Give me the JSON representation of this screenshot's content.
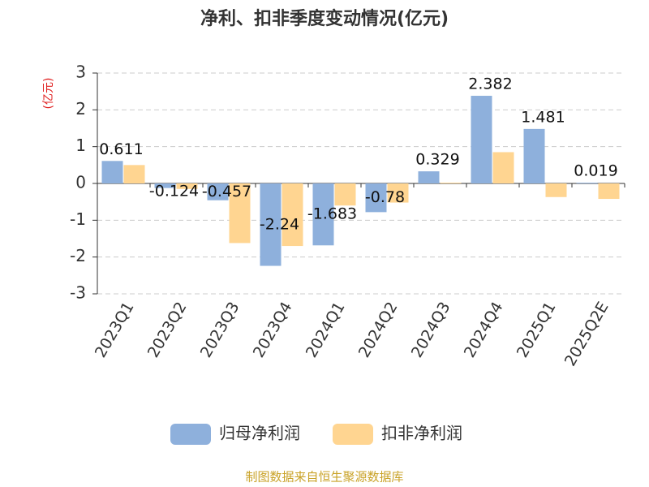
{
  "chart_data": {
    "type": "bar",
    "title": "净利、扣非季度变动情况(亿元)",
    "y_label": "(亿元)",
    "categories": [
      "2023Q1",
      "2023Q2",
      "2023Q3",
      "2023Q4",
      "2024Q1",
      "2024Q2",
      "2024Q3",
      "2024Q4",
      "2025Q1",
      "2025Q2E"
    ],
    "series": [
      {
        "name": "归母净利润",
        "color": "#8eb0dc",
        "values": [
          0.611,
          -0.124,
          -0.457,
          -2.24,
          -1.683,
          -0.78,
          0.329,
          2.382,
          1.481,
          0.019
        ],
        "show_labels": true
      },
      {
        "name": "扣非净利润",
        "color": "#ffd591",
        "values": [
          0.5,
          -0.15,
          -1.62,
          -1.7,
          -0.6,
          -0.52,
          0.02,
          0.85,
          -0.37,
          -0.42
        ],
        "show_labels": false
      }
    ],
    "ylim": [
      -3,
      3
    ],
    "yticks": [
      -3,
      -2,
      -1,
      0,
      1,
      2,
      3
    ],
    "grid": true,
    "legend": "bottom",
    "source": "制图数据来自恒生聚源数据库"
  }
}
